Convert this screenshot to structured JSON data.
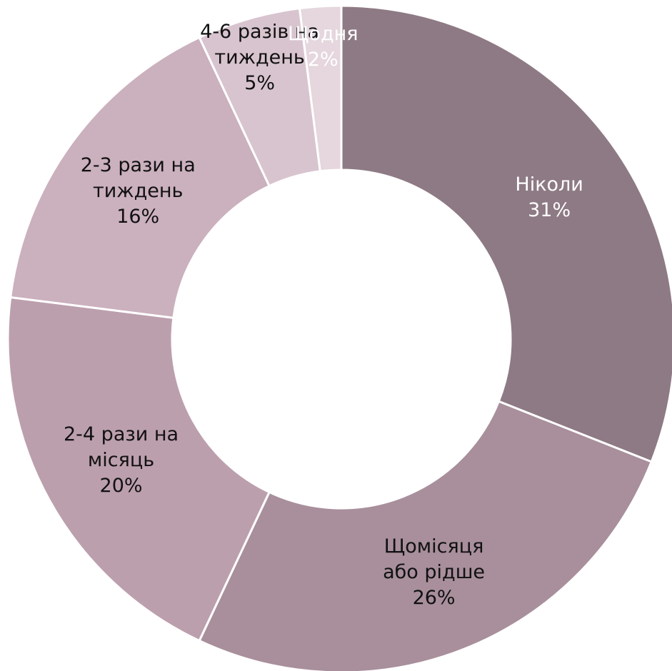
{
  "chart_data": {
    "type": "donut",
    "categories": [
      "Ніколи",
      "Щомісяця або рідше",
      "2-4 рази на місяць",
      "2-3 рази на тиждень",
      "4-6 разів на тиждень",
      "Щодня"
    ],
    "values": [
      31,
      26,
      20,
      16,
      5,
      2
    ],
    "value_labels": [
      "31%",
      "26%",
      "20%",
      "16%",
      "5%",
      "2%"
    ],
    "colors": [
      "#8e7a84",
      "#a88f9b",
      "#bc9fad",
      "#cbb0bd",
      "#d8c4ce",
      "#e5d7dd"
    ],
    "label_colors": [
      "#ffffff",
      "#111111",
      "#111111",
      "#111111",
      "#111111",
      "#ffffff"
    ]
  }
}
